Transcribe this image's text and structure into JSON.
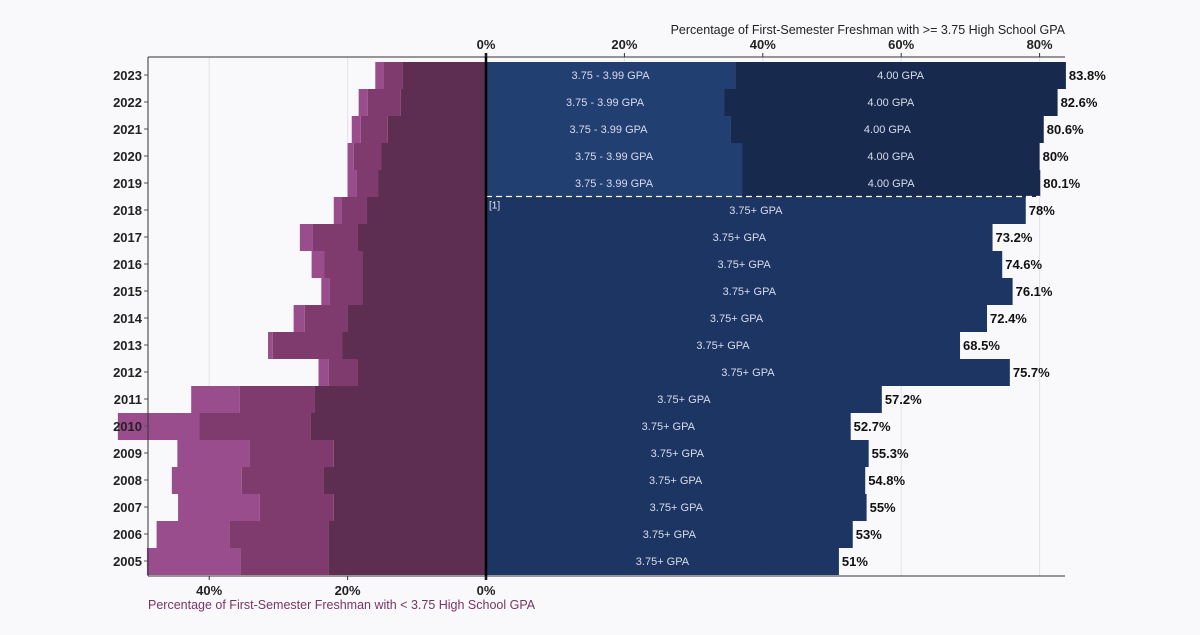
{
  "chart_data": {
    "type": "bar",
    "title_top": "Percentage of First-Semester Freshman with >= 3.75 High School GPA",
    "title_bottom": "Percentage of First-Semester Freshman with < 3.75 High School GPA",
    "years": [
      2023,
      2022,
      2021,
      2020,
      2019,
      2018,
      2017,
      2016,
      2015,
      2014,
      2013,
      2012,
      2011,
      2010,
      2009,
      2008,
      2007,
      2006,
      2005
    ],
    "right_axis": {
      "ticks": [
        "0%",
        "20%",
        "40%",
        "60%",
        "80%"
      ],
      "tick_values": [
        0,
        20,
        40,
        60,
        80
      ]
    },
    "left_axis": {
      "ticks": [
        "40%",
        "20%",
        "0%"
      ],
      "tick_values": [
        40,
        20,
        0
      ]
    },
    "right_series": [
      {
        "year": 2023,
        "total": 83.8,
        "total_label": "83.8%",
        "split": 36.0,
        "label_a": "3.75 - 3.99 GPA",
        "label_b": "4.00 GPA"
      },
      {
        "year": 2022,
        "total": 82.6,
        "total_label": "82.6%",
        "split": 34.4,
        "label_a": "3.75 - 3.99 GPA",
        "label_b": "4.00 GPA"
      },
      {
        "year": 2021,
        "total": 80.6,
        "total_label": "80.6%",
        "split": 35.4,
        "label_a": "3.75 - 3.99 GPA",
        "label_b": "4.00 GPA"
      },
      {
        "year": 2020,
        "total": 80.0,
        "total_label": "80%",
        "split": 37.0,
        "label_a": "3.75 - 3.99 GPA",
        "label_b": "4.00 GPA"
      },
      {
        "year": 2019,
        "total": 80.1,
        "total_label": "80.1%",
        "split": 37.0,
        "label_a": "3.75 - 3.99 GPA",
        "label_b": "4.00 GPA"
      },
      {
        "year": 2018,
        "total": 78.0,
        "total_label": "78%",
        "label": "3.75+ GPA"
      },
      {
        "year": 2017,
        "total": 73.2,
        "total_label": "73.2%",
        "label": "3.75+ GPA"
      },
      {
        "year": 2016,
        "total": 74.6,
        "total_label": "74.6%",
        "label": "3.75+ GPA"
      },
      {
        "year": 2015,
        "total": 76.1,
        "total_label": "76.1%",
        "label": "3.75+ GPA"
      },
      {
        "year": 2014,
        "total": 72.4,
        "total_label": "72.4%",
        "label": "3.75+ GPA"
      },
      {
        "year": 2013,
        "total": 68.5,
        "total_label": "68.5%",
        "label": "3.75+ GPA"
      },
      {
        "year": 2012,
        "total": 75.7,
        "total_label": "75.7%",
        "label": "3.75+ GPA"
      },
      {
        "year": 2011,
        "total": 57.2,
        "total_label": "57.2%",
        "label": "3.75+ GPA"
      },
      {
        "year": 2010,
        "total": 52.7,
        "total_label": "52.7%",
        "label": "3.75+ GPA"
      },
      {
        "year": 2009,
        "total": 55.3,
        "total_label": "55.3%",
        "label": "3.75+ GPA"
      },
      {
        "year": 2008,
        "total": 54.8,
        "total_label": "54.8%",
        "label": "3.75+ GPA"
      },
      {
        "year": 2007,
        "total": 55.0,
        "total_label": "55%",
        "label": "3.75+ GPA"
      },
      {
        "year": 2006,
        "total": 53.0,
        "total_label": "53%",
        "label": "3.75+ GPA"
      },
      {
        "year": 2005,
        "total": 51.0,
        "total_label": "51%",
        "label": "3.75+ GPA"
      }
    ],
    "left_series": [
      {
        "year": 2023,
        "segments": [
          12.0,
          2.8,
          1.2
        ]
      },
      {
        "year": 2022,
        "segments": [
          12.3,
          4.8,
          1.3
        ]
      },
      {
        "year": 2021,
        "segments": [
          14.2,
          3.9,
          1.3
        ]
      },
      {
        "year": 2020,
        "segments": [
          15.1,
          4.0,
          0.9
        ]
      },
      {
        "year": 2019,
        "segments": [
          15.6,
          3.1,
          1.3
        ]
      },
      {
        "year": 2018,
        "segments": [
          17.2,
          3.7,
          1.1
        ]
      },
      {
        "year": 2017,
        "segments": [
          18.5,
          6.6,
          1.8
        ]
      },
      {
        "year": 2016,
        "segments": [
          17.9,
          5.5,
          1.8
        ]
      },
      {
        "year": 2015,
        "segments": [
          17.9,
          4.7,
          1.2
        ]
      },
      {
        "year": 2014,
        "segments": [
          20.0,
          6.2,
          1.6
        ]
      },
      {
        "year": 2013,
        "segments": [
          20.8,
          10.0,
          0.7
        ]
      },
      {
        "year": 2012,
        "segments": [
          18.5,
          4.2,
          1.5
        ]
      },
      {
        "year": 2011,
        "segments": [
          24.8,
          10.8,
          7.0
        ]
      },
      {
        "year": 2010,
        "segments": [
          25.4,
          16.0,
          11.8
        ]
      },
      {
        "year": 2009,
        "segments": [
          22.0,
          12.2,
          10.4
        ]
      },
      {
        "year": 2008,
        "segments": [
          23.5,
          11.8,
          10.1
        ]
      },
      {
        "year": 2007,
        "segments": [
          22.0,
          10.7,
          11.8
        ]
      },
      {
        "year": 2006,
        "segments": [
          22.8,
          14.3,
          10.5
        ]
      },
      {
        "year": 2005,
        "segments": [
          22.8,
          12.7,
          13.5
        ]
      }
    ],
    "divider_note": "[1]",
    "xlim_right": [
      0,
      84
    ],
    "xlim_left": [
      49,
      0
    ],
    "grid": true
  },
  "colors": {
    "background": "#f9f9fb",
    "navy_4gpa": "#172a4e",
    "navy_mid": "#1d3562",
    "blue_375": "#223f72",
    "purple_1": "#5d2d52",
    "purple_2": "#7f3a6e",
    "purple_3": "#9a4d8c",
    "purple_4": "#b678ab",
    "title_bottom": "#7a3366"
  }
}
